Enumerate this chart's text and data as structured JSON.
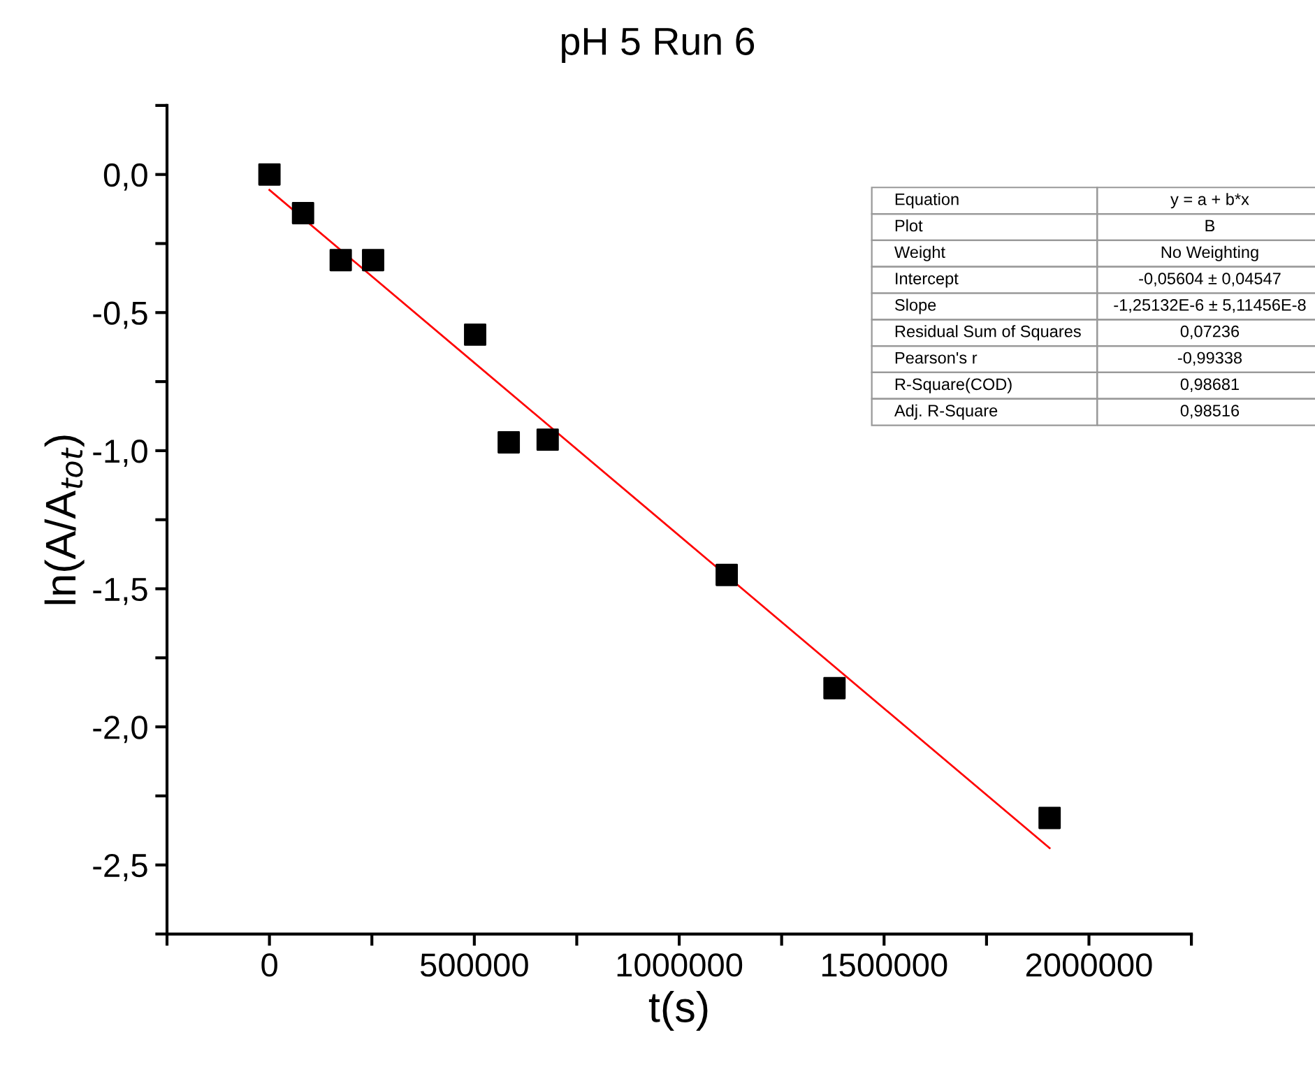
{
  "chart_data": {
    "type": "scatter",
    "title": "pH 5 Run 6",
    "xlabel": "t(s)",
    "ylabel": "ln(A/A$_{tot}$)",
    "xlim": [
      -250000,
      2250000
    ],
    "ylim": [
      -2.75,
      0.25
    ],
    "xticks": [
      {
        "value": -250000,
        "label": null
      },
      0,
      {
        "value": 250000,
        "label": null
      },
      500000,
      {
        "value": 750000,
        "label": null
      },
      1000000,
      {
        "value": 1250000,
        "label": null
      },
      1500000,
      {
        "value": 1750000,
        "label": null
      },
      2000000,
      {
        "value": 2250000,
        "label": null
      }
    ],
    "yticks": [
      {
        "value": 0.25,
        "label": null
      },
      {
        "value": 0,
        "label": "0,0"
      },
      {
        "value": -0.25,
        "label": null
      },
      {
        "value": -0.5,
        "label": "-0,5"
      },
      {
        "value": -0.75,
        "label": null
      },
      {
        "value": -1.0,
        "label": "-1,0"
      },
      {
        "value": -1.25,
        "label": null
      },
      {
        "value": -1.5,
        "label": "-1,5"
      },
      {
        "value": -1.75,
        "label": null
      },
      {
        "value": -2.0,
        "label": "-2,0"
      },
      {
        "value": -2.25,
        "label": null
      },
      {
        "value": -2.5,
        "label": "-2,5"
      },
      {
        "value": -2.75,
        "label": null
      }
    ],
    "grid": false,
    "legend": false,
    "series": [
      {
        "marker": "square",
        "color": "#000000",
        "x": [
          0,
          82000,
          174000,
          253000,
          502000,
          584000,
          679000,
          1116000,
          1379000,
          1904000
        ],
        "values": [
          0,
          -0.14,
          -0.31,
          -0.31,
          -0.58,
          -0.97,
          -0.96,
          -1.45,
          -1.86,
          -2.33
        ]
      },
      {
        "type": "line",
        "marker": "none",
        "line_style": "solid",
        "color": "#ff0000",
        "x": [
          0,
          1904000
        ],
        "values": [
          -0.056,
          -2.439
        ]
      }
    ],
    "annotations": [
      "Equation",
      "y = a + b*x",
      "Plot",
      "B",
      "Weight",
      "No Weighting",
      "Intercept",
      "-0,05604 ± 0,04547",
      "Slope",
      "-1,25132E-6 ± 5,11456E-8",
      "Residual Sum of Squares",
      "0,07236",
      "Pearson's r",
      "-0,99338",
      "R-Square(COD)",
      "0,98681",
      "Adj. R-Square",
      "0,98516"
    ]
  }
}
